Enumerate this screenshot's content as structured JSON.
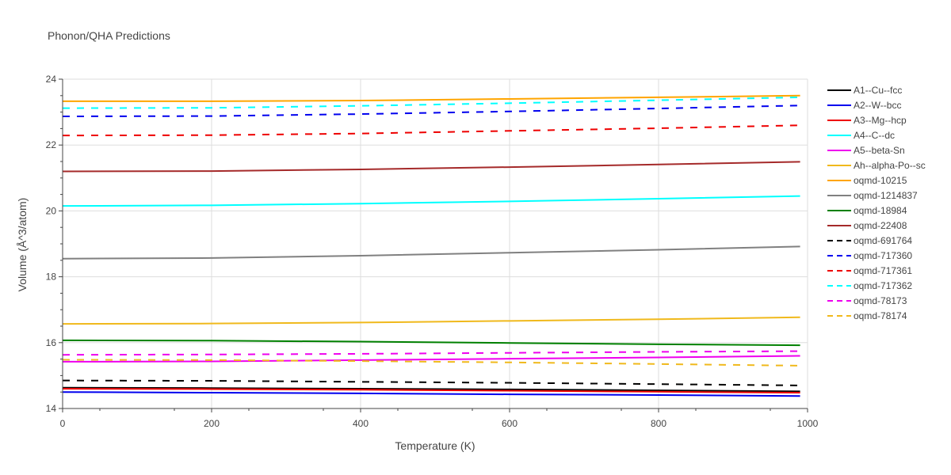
{
  "chart_data": {
    "type": "line",
    "title": "Phonon/QHA Predictions",
    "xlabel": "Temperature (K)",
    "ylabel": "Volume (Å^3/atom)",
    "xlim": [
      0,
      1000
    ],
    "ylim": [
      14,
      24
    ],
    "xticks": [
      0,
      200,
      400,
      600,
      800,
      1000
    ],
    "yticks": [
      14,
      16,
      18,
      20,
      22,
      24
    ],
    "grid": true,
    "legend_position": "right",
    "series": [
      {
        "name": "A1--Cu--fcc",
        "color": "#000000",
        "dash": "solid",
        "x": [
          0,
          200,
          400,
          600,
          800,
          990
        ],
        "y": [
          14.63,
          14.62,
          14.6,
          14.58,
          14.55,
          14.52
        ]
      },
      {
        "name": "A2--W--bcc",
        "color": "#0000ee",
        "dash": "solid",
        "x": [
          0,
          200,
          400,
          600,
          800,
          990
        ],
        "y": [
          14.5,
          14.48,
          14.46,
          14.43,
          14.41,
          14.38
        ]
      },
      {
        "name": "A3--Mg--hcp",
        "color": "#ee0000",
        "dash": "solid",
        "x": [
          0,
          200,
          400,
          600,
          800,
          990
        ],
        "y": [
          14.6,
          14.59,
          14.57,
          14.54,
          14.51,
          14.48
        ]
      },
      {
        "name": "A4--C--dc",
        "color": "#00ffff",
        "dash": "solid",
        "x": [
          0,
          200,
          400,
          600,
          800,
          990
        ],
        "y": [
          20.15,
          20.17,
          20.22,
          20.29,
          20.37,
          20.45
        ]
      },
      {
        "name": "A5--beta-Sn",
        "color": "#ee00ee",
        "dash": "solid",
        "x": [
          0,
          200,
          400,
          600,
          800,
          990
        ],
        "y": [
          15.42,
          15.43,
          15.47,
          15.51,
          15.55,
          15.6
        ]
      },
      {
        "name": "Ah--alpha-Po--sc",
        "color": "#f0b91c",
        "dash": "solid",
        "x": [
          0,
          200,
          400,
          600,
          800,
          990
        ],
        "y": [
          16.57,
          16.58,
          16.61,
          16.66,
          16.71,
          16.77
        ]
      },
      {
        "name": "oqmd-10215",
        "color": "#ffa500",
        "dash": "solid",
        "x": [
          0,
          200,
          400,
          600,
          800,
          990
        ],
        "y": [
          23.33,
          23.33,
          23.35,
          23.4,
          23.45,
          23.5
        ]
      },
      {
        "name": "oqmd-1214837",
        "color": "#808080",
        "dash": "solid",
        "x": [
          0,
          200,
          400,
          600,
          800,
          990
        ],
        "y": [
          18.55,
          18.57,
          18.64,
          18.73,
          18.82,
          18.92
        ]
      },
      {
        "name": "oqmd-18984",
        "color": "#008000",
        "dash": "solid",
        "x": [
          0,
          200,
          400,
          600,
          800,
          990
        ],
        "y": [
          16.07,
          16.06,
          16.03,
          15.99,
          15.95,
          15.92
        ]
      },
      {
        "name": "oqmd-22408",
        "color": "#a52a2a",
        "dash": "solid",
        "x": [
          0,
          200,
          400,
          600,
          800,
          990
        ],
        "y": [
          21.2,
          21.21,
          21.26,
          21.33,
          21.41,
          21.49
        ]
      },
      {
        "name": "oqmd-691764",
        "color": "#000000",
        "dash": "dash",
        "x": [
          0,
          200,
          400,
          600,
          800,
          990
        ],
        "y": [
          14.85,
          14.84,
          14.81,
          14.78,
          14.74,
          14.7
        ]
      },
      {
        "name": "oqmd-717360",
        "color": "#0000ee",
        "dash": "dash",
        "x": [
          0,
          200,
          400,
          600,
          800,
          990
        ],
        "y": [
          22.87,
          22.88,
          22.94,
          23.02,
          23.11,
          23.2
        ]
      },
      {
        "name": "oqmd-717361",
        "color": "#ee0000",
        "dash": "dash",
        "x": [
          0,
          200,
          400,
          600,
          800,
          990
        ],
        "y": [
          22.29,
          22.3,
          22.35,
          22.43,
          22.51,
          22.6
        ]
      },
      {
        "name": "oqmd-717362",
        "color": "#00ffff",
        "dash": "dash",
        "x": [
          0,
          200,
          400,
          600,
          800,
          990
        ],
        "y": [
          23.12,
          23.13,
          23.19,
          23.27,
          23.36,
          23.45
        ]
      },
      {
        "name": "oqmd-78173",
        "color": "#ee00ee",
        "dash": "dash",
        "x": [
          0,
          200,
          400,
          600,
          800,
          990
        ],
        "y": [
          15.63,
          15.64,
          15.66,
          15.69,
          15.72,
          15.74
        ]
      },
      {
        "name": "oqmd-78174",
        "color": "#f0b91c",
        "dash": "dash",
        "x": [
          0,
          200,
          400,
          600,
          800,
          990
        ],
        "y": [
          15.48,
          15.47,
          15.44,
          15.4,
          15.35,
          15.3
        ]
      }
    ]
  }
}
